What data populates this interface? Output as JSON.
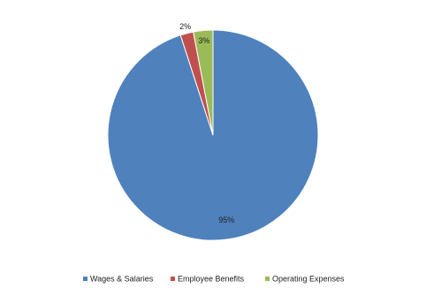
{
  "chart_data": {
    "type": "pie",
    "categories": [
      "Wages & Salaries",
      "Employee Benefits",
      "Operating Expenses"
    ],
    "values": [
      95,
      2,
      3
    ],
    "value_labels": [
      "95%",
      "2%",
      "3%"
    ],
    "colors": [
      "#4f81bd",
      "#c0504d",
      "#9bbb59"
    ],
    "legend": "bottom"
  }
}
